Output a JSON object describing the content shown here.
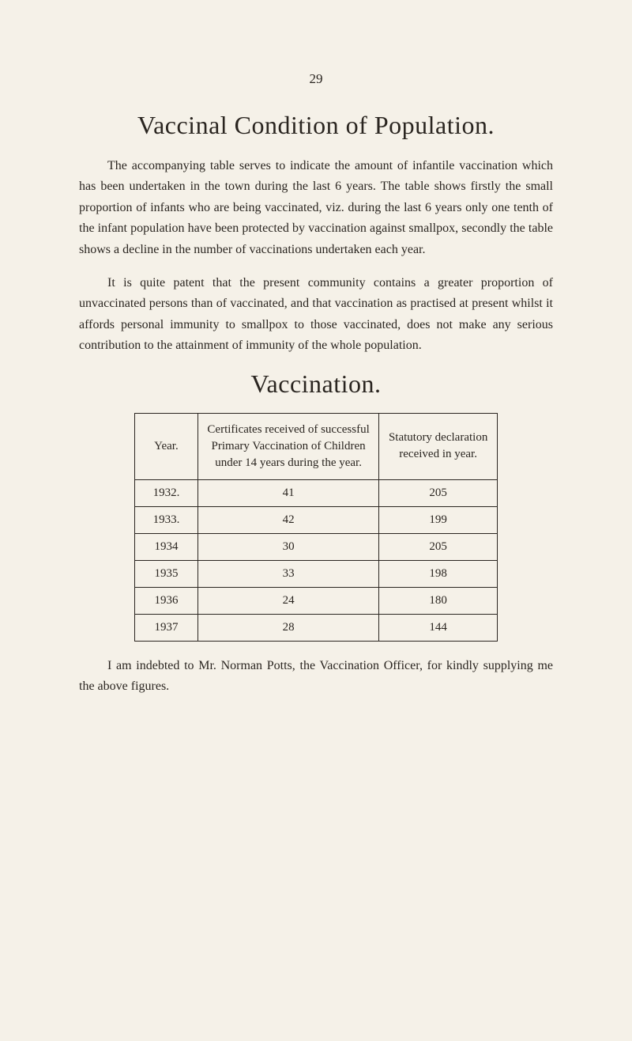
{
  "page_number": "29",
  "title_main": "Vaccinal Condition of Population.",
  "paragraph_1": "The accompanying table serves to indicate the amount of infantile vaccination which has been undertaken in the town during the last 6 years. The table shows firstly the small proportion of infants who are being vaccinated, viz. during the last 6 years only one tenth of the infant population have been protected by vaccination against smallpox, secondly the table shows a decline in the number of vaccinations undertaken each year.",
  "paragraph_2": "It is quite patent that the present community contains a greater proportion of unvaccinated persons than of vaccinated, and that vaccination as practised at present whilst it affords personal immunity to smallpox to those vaccinated, does not make any serious contribution to the attainment of immunity of the whole population.",
  "title_section": "Vaccination.",
  "table": {
    "columns": [
      "Year.",
      "Certificates received of successful Primary Vaccination of Children under 14 years during the year.",
      "Statutory declaration received in year."
    ],
    "rows": [
      [
        "1932.",
        "41",
        "205"
      ],
      [
        "1933.",
        "42",
        "199"
      ],
      [
        "1934",
        "30",
        "205"
      ],
      [
        "1935",
        "33",
        "198"
      ],
      [
        "1936",
        "24",
        "180"
      ],
      [
        "1937",
        "28",
        "144"
      ]
    ]
  },
  "footer_text": "I am indebted to Mr. Norman Potts, the Vaccination Officer, for kindly supplying me the above figures.",
  "colors": {
    "background": "#f5f1e8",
    "text": "#2a2520",
    "border": "#2a2520"
  }
}
